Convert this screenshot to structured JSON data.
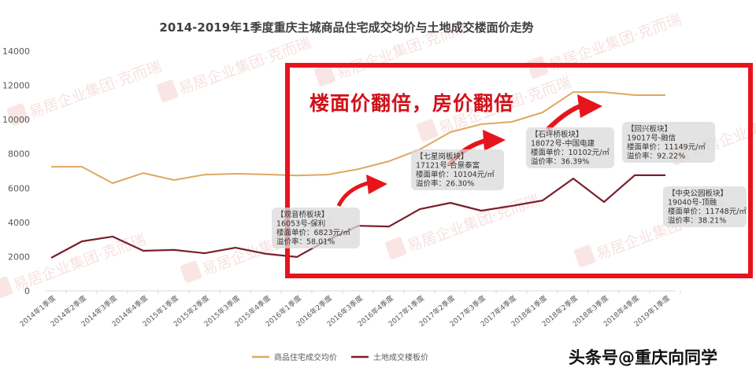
{
  "chart_data": {
    "type": "line",
    "title": "2014-2019年1季度重庆主城商品住宅成交均价与土地成交楼面价走势",
    "xlabel": "",
    "ylabel": "",
    "ylim": [
      0,
      14000
    ],
    "yticks": [
      0,
      2000,
      4000,
      6000,
      8000,
      10000,
      12000,
      14000
    ],
    "grid": false,
    "legend_position": "bottom",
    "categories": [
      "2014年1季度",
      "2014年2季度",
      "2014年3季度",
      "2014年4季度",
      "2015年1季度",
      "2015年2季度",
      "2015年3季度",
      "2015年4季度",
      "2016年1季度",
      "2016年2季度",
      "2016年3季度",
      "2016年4季度",
      "2017年1季度",
      "2017年2季度",
      "2017年3季度",
      "2017年4季度",
      "2018年1季度",
      "2018年2季度",
      "2018年3季度",
      "2018年4季度",
      "2019年1季度"
    ],
    "series": [
      {
        "name": "商品住宅成交均价",
        "color": "#e0a860",
        "values": [
          7250,
          7250,
          6290,
          6880,
          6470,
          6790,
          6840,
          6800,
          6740,
          6790,
          7110,
          7570,
          8260,
          9270,
          9730,
          9870,
          10420,
          11610,
          11610,
          11430,
          11430
        ]
      },
      {
        "name": "土地成交楼板价",
        "color": "#7a1f2b",
        "values": [
          1930,
          2890,
          3170,
          2340,
          2390,
          2200,
          2520,
          2160,
          1980,
          2980,
          3800,
          3760,
          4770,
          5140,
          4680,
          4960,
          5280,
          6560,
          5190,
          6750,
          6750
        ]
      }
    ],
    "annotations": [
      {
        "headline": "楼面价翻倍，房价翻倍"
      },
      {
        "block": "【观音桥板块】",
        "lot": "16053号-保利",
        "price": "楼面单价：6823元/㎡",
        "premium": "溢价率：58.01%"
      },
      {
        "block": "【七星岗板块】",
        "lot": "17121号-合景泰富",
        "price": "楼面单价：10104元/㎡",
        "premium": "溢价率：26.30%"
      },
      {
        "block": "【石坪桥板块】",
        "lot": "18072号-中国电建",
        "price": "楼面单价：10102元/㎡",
        "premium": "溢价率：36.39%"
      },
      {
        "block": "【回兴板块】",
        "lot": "19017号-融信",
        "price": "楼面单价：11149元/㎡",
        "premium": "溢价率：92.22%"
      },
      {
        "block": "【中央公园板块】",
        "lot": "19040号-顶融",
        "price": "楼面单价：11748元/㎡",
        "premium": "溢价率：38.21%"
      }
    ]
  },
  "overlay": {
    "headline": "楼面价翻倍，房价翻倍",
    "highlight_color": "#e8141c",
    "watermark": "易居企业集团·克而瑞",
    "credit": "头条号@重庆向同学"
  },
  "legend": {
    "items": [
      {
        "label": "商品住宅成交均价",
        "color": "#e0a860"
      },
      {
        "label": "土地成交楼板价",
        "color": "#7a1f2b"
      }
    ]
  }
}
